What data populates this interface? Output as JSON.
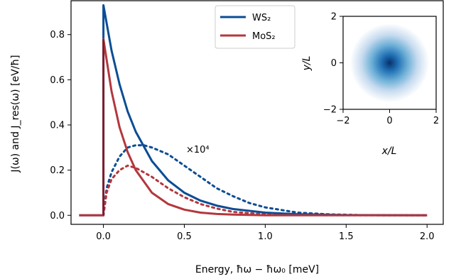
{
  "chart_data": [
    {
      "type": "line",
      "xlabel": "Energy, ħω − ħω₀  [meV]",
      "ylabel": "J(ω) and J_res(ω)  [eV/ħ]",
      "xlim": [
        -0.2,
        2.1
      ],
      "ylim": [
        -0.04,
        0.95
      ],
      "xticks": [
        0.0,
        0.5,
        1.0,
        1.5,
        2.0
      ],
      "xtick_labels": [
        "0.0",
        "0.5",
        "1.0",
        "1.5",
        "2.0"
      ],
      "yticks": [
        0.0,
        0.2,
        0.4,
        0.6,
        0.8
      ],
      "ytick_labels": [
        "0.0",
        "0.2",
        "0.4",
        "0.6",
        "0.8"
      ],
      "grid": false,
      "legend_position": "top-center",
      "annotation": "×10⁴",
      "series": [
        {
          "name": "WS₂",
          "color": "#0b4d94",
          "style": "solid",
          "x": [
            -0.15,
            -0.01,
            0.0,
            0.0,
            0.05,
            0.1,
            0.15,
            0.2,
            0.3,
            0.4,
            0.5,
            0.6,
            0.7,
            0.8,
            1.0,
            1.2,
            1.5,
            2.0
          ],
          "y": [
            0.0,
            0.0,
            0.0,
            0.93,
            0.73,
            0.58,
            0.46,
            0.37,
            0.24,
            0.155,
            0.1,
            0.065,
            0.043,
            0.028,
            0.012,
            0.005,
            0.001,
            0.0
          ]
        },
        {
          "name": "MoS₂",
          "color": "#b3373d",
          "style": "solid",
          "x": [
            -0.15,
            -0.01,
            0.0,
            0.0,
            0.05,
            0.1,
            0.15,
            0.2,
            0.3,
            0.4,
            0.5,
            0.6,
            0.7,
            0.8,
            1.0,
            2.0
          ],
          "y": [
            0.0,
            0.0,
            0.0,
            0.78,
            0.55,
            0.39,
            0.28,
            0.2,
            0.1,
            0.05,
            0.025,
            0.012,
            0.006,
            0.003,
            0.0,
            0.0
          ],
          "highlight_vertical_color": "#6e1a2c"
        },
        {
          "name": "",
          "color": "#0b4d94",
          "style": "dotted",
          "x": [
            0.0,
            0.02,
            0.05,
            0.1,
            0.15,
            0.2,
            0.25,
            0.3,
            0.4,
            0.5,
            0.6,
            0.7,
            0.8,
            0.9,
            1.0,
            1.2,
            1.4,
            1.6,
            2.0
          ],
          "y": [
            0.0,
            0.12,
            0.19,
            0.26,
            0.3,
            0.31,
            0.31,
            0.3,
            0.27,
            0.22,
            0.17,
            0.12,
            0.085,
            0.055,
            0.035,
            0.012,
            0.004,
            0.001,
            0.0
          ]
        },
        {
          "name": "",
          "color": "#b3373d",
          "style": "dotted",
          "x": [
            0.0,
            0.02,
            0.05,
            0.1,
            0.15,
            0.2,
            0.25,
            0.3,
            0.4,
            0.5,
            0.6,
            0.7,
            0.8,
            1.0,
            1.2,
            2.0
          ],
          "y": [
            0.0,
            0.1,
            0.16,
            0.2,
            0.22,
            0.21,
            0.19,
            0.17,
            0.12,
            0.08,
            0.05,
            0.03,
            0.015,
            0.004,
            0.001,
            0.0
          ]
        }
      ]
    },
    {
      "type": "heatmap",
      "xlabel": "x/L",
      "ylabel": "y/L",
      "xlim": [
        -2,
        2
      ],
      "ylim": [
        -2,
        2
      ],
      "xticks": [
        -2,
        0,
        2
      ],
      "xtick_labels": [
        "−2",
        "0",
        "2"
      ],
      "yticks": [
        -2,
        0,
        2
      ],
      "ytick_labels": [
        "−2",
        "0",
        "2"
      ],
      "colormap": [
        "#ffffff",
        "#c6dbef",
        "#6baed6",
        "#2171b5",
        "#08306b"
      ],
      "function": "gaussian centered at (0,0), peak at center"
    }
  ]
}
